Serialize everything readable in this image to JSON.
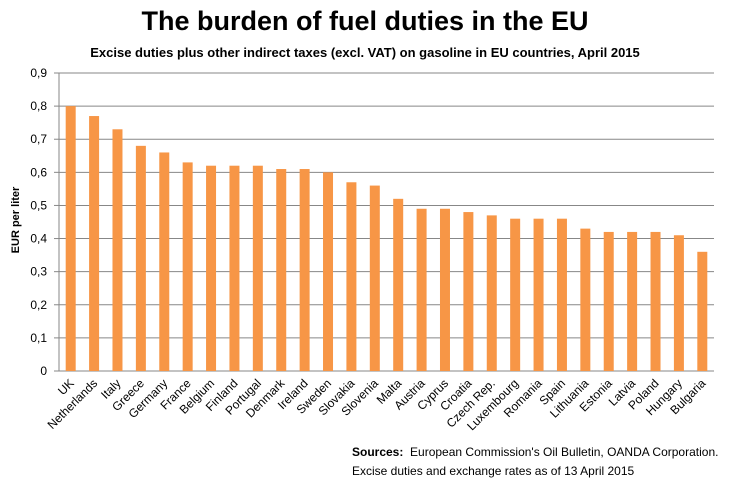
{
  "chart_data": {
    "type": "bar",
    "title": "The burden of fuel duties in the EU",
    "subtitle": "Excise duties plus other indirect taxes (excl. VAT) on gasoline in EU countries, April 2015",
    "xlabel": "",
    "ylabel": "EUR per liter",
    "ylim": [
      0,
      0.9
    ],
    "yticks": [
      "0",
      "0,1",
      "0,2",
      "0,3",
      "0,4",
      "0,5",
      "0,6",
      "0,7",
      "0,8",
      "0,9"
    ],
    "grid": true,
    "bar_color": "#F79646",
    "categories": [
      "UK",
      "Netherlands",
      "Italy",
      "Greece",
      "Germany",
      "France",
      "Belgium",
      "Finland",
      "Portugal",
      "Denmark",
      "Ireland",
      "Sweden",
      "Slovakia",
      "Slovenia",
      "Malta",
      "Austria",
      "Cyprus",
      "Croatia",
      "Czech Rep.",
      "Luxembourg",
      "Romania",
      "Spain",
      "Lithuania",
      "Estonia",
      "Latvia",
      "Poland",
      "Hungary",
      "Bulgaria"
    ],
    "values": [
      0.8,
      0.77,
      0.73,
      0.68,
      0.66,
      0.63,
      0.62,
      0.62,
      0.62,
      0.61,
      0.61,
      0.6,
      0.57,
      0.56,
      0.52,
      0.49,
      0.49,
      0.48,
      0.47,
      0.46,
      0.46,
      0.46,
      0.43,
      0.42,
      0.42,
      0.42,
      0.41,
      0.36
    ]
  },
  "sources": {
    "label": "Sources:",
    "text": "European Commission's Oil Bulletin, OANDA Corporation.",
    "line2": "Excise duties and exchange rates as of 13 April 2015"
  }
}
